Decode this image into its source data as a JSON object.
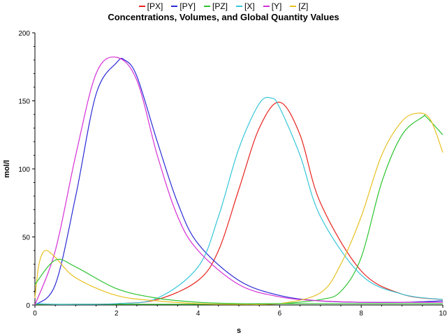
{
  "chart_data": {
    "type": "line",
    "title": "Concentrations, Volumes, and Global Quantity Values",
    "xlabel": "s",
    "ylabel": "mol/l",
    "xlim": [
      0,
      10
    ],
    "ylim": [
      0,
      200
    ],
    "xticks": [
      "0",
      "2",
      "4",
      "6",
      "8",
      "10"
    ],
    "yticks": [
      "0",
      "50",
      "100",
      "150",
      "200"
    ],
    "legend_position": "top-center",
    "grid": false,
    "series": [
      {
        "name": "[PX]",
        "color": "#e8231e",
        "x": [
          0,
          1,
          2,
          3,
          4,
          4.5,
          5,
          5.5,
          6,
          6.5,
          7,
          8,
          9,
          10
        ],
        "values": [
          0.5,
          0.5,
          1,
          4,
          18,
          40,
          85,
          130,
          149,
          125,
          75,
          25,
          8,
          4
        ]
      },
      {
        "name": "[PY]",
        "color": "#2a2ad6",
        "x": [
          0,
          0.5,
          1,
          1.5,
          2,
          2.2,
          2.5,
          3,
          3.5,
          4,
          5,
          6,
          7,
          8,
          9,
          10
        ],
        "values": [
          0,
          15,
          80,
          155,
          178,
          180,
          168,
          120,
          75,
          45,
          18,
          7,
          3,
          2,
          2,
          3
        ]
      },
      {
        "name": "[PZ]",
        "color": "#2ec431",
        "x": [
          0,
          2,
          3,
          4,
          5,
          6,
          7,
          7.5,
          8,
          8.5,
          9,
          9.5,
          9.6,
          10
        ],
        "values": [
          0.5,
          0.5,
          0.5,
          0.5,
          0.5,
          1,
          4,
          10,
          35,
          90,
          125,
          138,
          138,
          125
        ]
      },
      {
        "name": "[X]",
        "color": "#36c6d8",
        "x": [
          0,
          0.5,
          1,
          2,
          3,
          4,
          4.5,
          5,
          5.5,
          5.8,
          6,
          6.5,
          7,
          8,
          9,
          10
        ],
        "values": [
          1,
          0.5,
          0.5,
          1,
          5,
          28,
          65,
          115,
          148,
          152,
          145,
          110,
          65,
          22,
          8,
          4
        ]
      },
      {
        "name": "[Y]",
        "color": "#d62ed6",
        "x": [
          0,
          0.5,
          1,
          1.5,
          2,
          2.5,
          3,
          3.5,
          4,
          5,
          6,
          7,
          8,
          9,
          10
        ],
        "values": [
          0,
          40,
          110,
          170,
          182,
          165,
          110,
          65,
          40,
          15,
          6,
          3,
          2,
          2,
          2
        ]
      },
      {
        "name": "[Z]",
        "color": "#e8c021",
        "x": [
          0,
          0.1,
          0.25,
          0.5,
          1,
          2,
          3,
          4,
          5,
          6,
          7,
          7.5,
          8,
          8.5,
          9,
          9.4,
          9.7,
          10
        ],
        "values": [
          5,
          30,
          40,
          35,
          20,
          7,
          3,
          1,
          0.5,
          1,
          9,
          30,
          65,
          110,
          135,
          141,
          136,
          112
        ]
      },
      {
        "name": "",
        "color": "#888888",
        "x": [
          0,
          0.5,
          1,
          2,
          3,
          4,
          5,
          6,
          7,
          8,
          9,
          10
        ],
        "values": [
          15,
          33,
          28,
          12,
          5,
          2,
          1,
          1,
          1,
          1,
          1,
          1
        ],
        "hidden": true
      }
    ]
  }
}
